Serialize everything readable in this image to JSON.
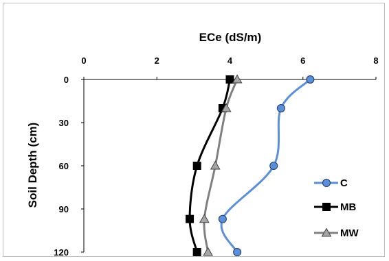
{
  "chart_data": {
    "type": "line",
    "title": "",
    "xlabel": "ECe (dS/m)",
    "ylabel": "Soil Depth (cm)",
    "x_axis_position": "top",
    "y_axis_inverted": true,
    "xlim": [
      0,
      8
    ],
    "ylim": [
      0,
      120
    ],
    "x_ticks": [
      "0",
      "2",
      "4",
      "6",
      "8"
    ],
    "y_ticks": [
      "0",
      "30",
      "60",
      "90",
      "120"
    ],
    "grid": false,
    "legend_position": "right",
    "series": [
      {
        "name": "C",
        "color": "#5b8fd9",
        "marker": "circle",
        "marker_fill": "#5b8fd9",
        "x": [
          6.2,
          5.4,
          5.2,
          3.8,
          4.2
        ],
        "y": [
          0,
          20,
          60,
          97,
          120
        ]
      },
      {
        "name": "MB",
        "color": "#000000",
        "marker": "square",
        "marker_fill": "#000000",
        "x": [
          4.0,
          3.8,
          3.1,
          2.9,
          3.1
        ],
        "y": [
          0,
          20,
          60,
          97,
          120
        ]
      },
      {
        "name": "MW",
        "color": "#808080",
        "marker": "triangle",
        "marker_fill": "#a6a6a6",
        "x": [
          4.2,
          3.9,
          3.6,
          3.3,
          3.4
        ],
        "y": [
          0,
          20,
          60,
          97,
          120
        ]
      }
    ]
  }
}
